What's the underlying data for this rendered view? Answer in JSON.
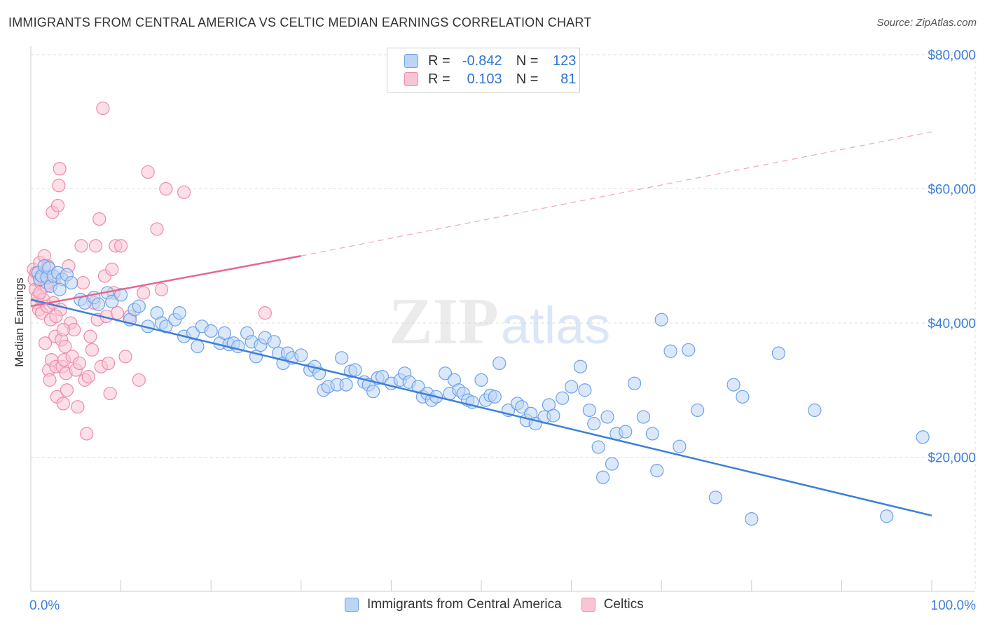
{
  "title": "IMMIGRANTS FROM CENTRAL AMERICA VS CELTIC MEDIAN EARNINGS CORRELATION CHART",
  "source": "Source: ZipAtlas.com",
  "watermark": {
    "zip": "ZIP",
    "atlas": "atlas"
  },
  "legend": {
    "r_label": "R =",
    "n_label": "N =",
    "series": [
      {
        "name": "Immigrants from Central America",
        "r": "-0.842",
        "n": "123",
        "fill": "#bcd5f5",
        "stroke": "#6ea1e8"
      },
      {
        "name": "Celtics",
        "r": "0.103",
        "n": "81",
        "fill": "#f9c4d3",
        "stroke": "#ee8aa8"
      }
    ]
  },
  "colors": {
    "blue": "#3d7fd9",
    "pink": "#e8668f",
    "axis_text": "#3d7fd9",
    "grid": "#dddddd"
  },
  "chart_data": {
    "type": "scatter",
    "title": "IMMIGRANTS FROM CENTRAL AMERICA VS CELTIC MEDIAN EARNINGS CORRELATION CHART",
    "xlabel": "",
    "ylabel": "Median Earnings",
    "xlim": [
      0,
      100
    ],
    "ylim": [
      0,
      83000
    ],
    "x_tick_labels": [
      "0.0%",
      "100.0%"
    ],
    "y_ticks": [
      20000,
      40000,
      60000,
      80000
    ],
    "y_tick_labels": [
      "$20,000",
      "$40,000",
      "$60,000",
      "$80,000"
    ],
    "grid": true,
    "series": [
      {
        "name": "Immigrants from Central America",
        "r": -0.842,
        "n": 123,
        "trend": {
          "x0": 0,
          "y0": 43500,
          "x1": 100,
          "y1": 11300,
          "style": "solid"
        },
        "points": [
          [
            0.8,
            47500
          ],
          [
            1.0,
            46500
          ],
          [
            1.2,
            47000
          ],
          [
            1.5,
            48500
          ],
          [
            1.8,
            46800
          ],
          [
            2.0,
            48200
          ],
          [
            2.2,
            45500
          ],
          [
            2.5,
            47000
          ],
          [
            3.0,
            47500
          ],
          [
            3.5,
            46500
          ],
          [
            3.2,
            45000
          ],
          [
            4.0,
            47200
          ],
          [
            4.5,
            46000
          ],
          [
            5.5,
            43500
          ],
          [
            6.0,
            43000
          ],
          [
            7.0,
            43800
          ],
          [
            7.5,
            42800
          ],
          [
            8.5,
            44500
          ],
          [
            9.0,
            43200
          ],
          [
            10.0,
            44200
          ],
          [
            11.0,
            40500
          ],
          [
            11.5,
            42000
          ],
          [
            12.0,
            42500
          ],
          [
            13.0,
            39500
          ],
          [
            14.0,
            41500
          ],
          [
            14.5,
            40000
          ],
          [
            15.0,
            39500
          ],
          [
            16.0,
            40500
          ],
          [
            16.5,
            41500
          ],
          [
            17.0,
            38000
          ],
          [
            18.0,
            38500
          ],
          [
            18.5,
            36500
          ],
          [
            19.0,
            39500
          ],
          [
            20.0,
            38800
          ],
          [
            21.0,
            37000
          ],
          [
            21.5,
            38500
          ],
          [
            22.0,
            36800
          ],
          [
            22.5,
            37000
          ],
          [
            23.0,
            36500
          ],
          [
            24.0,
            38500
          ],
          [
            24.5,
            37200
          ],
          [
            25.0,
            35000
          ],
          [
            25.5,
            36700
          ],
          [
            26.0,
            37800
          ],
          [
            27.0,
            37200
          ],
          [
            27.5,
            35500
          ],
          [
            28.0,
            34000
          ],
          [
            28.5,
            35500
          ],
          [
            29.0,
            34800
          ],
          [
            30.0,
            35200
          ],
          [
            31.0,
            33000
          ],
          [
            31.5,
            33500
          ],
          [
            32.0,
            32500
          ],
          [
            32.5,
            30000
          ],
          [
            33.0,
            30500
          ],
          [
            34.0,
            30800
          ],
          [
            34.5,
            34800
          ],
          [
            35.0,
            30800
          ],
          [
            35.5,
            32800
          ],
          [
            36.0,
            33000
          ],
          [
            37.0,
            31200
          ],
          [
            37.5,
            30800
          ],
          [
            38.0,
            29800
          ],
          [
            38.5,
            31800
          ],
          [
            39.0,
            32000
          ],
          [
            40.0,
            31000
          ],
          [
            41.0,
            31500
          ],
          [
            41.5,
            32500
          ],
          [
            42.0,
            31200
          ],
          [
            43.0,
            30500
          ],
          [
            43.5,
            29000
          ],
          [
            44.0,
            29500
          ],
          [
            44.5,
            28500
          ],
          [
            45.0,
            29000
          ],
          [
            46.0,
            32500
          ],
          [
            46.5,
            29500
          ],
          [
            47.0,
            31500
          ],
          [
            47.5,
            30000
          ],
          [
            48.0,
            29500
          ],
          [
            48.5,
            28500
          ],
          [
            49.0,
            28200
          ],
          [
            50.0,
            31500
          ],
          [
            50.5,
            28500
          ],
          [
            51.0,
            29200
          ],
          [
            51.5,
            29000
          ],
          [
            52.0,
            34000
          ],
          [
            53.0,
            27000
          ],
          [
            54.0,
            28000
          ],
          [
            54.5,
            27500
          ],
          [
            55.0,
            25500
          ],
          [
            55.5,
            26500
          ],
          [
            56.0,
            25000
          ],
          [
            57.0,
            26000
          ],
          [
            57.5,
            27800
          ],
          [
            58.0,
            26200
          ],
          [
            59.0,
            28800
          ],
          [
            60.0,
            30500
          ],
          [
            61.0,
            33500
          ],
          [
            61.5,
            30000
          ],
          [
            62.0,
            27000
          ],
          [
            62.5,
            25000
          ],
          [
            63.0,
            21500
          ],
          [
            63.5,
            17000
          ],
          [
            64.0,
            26000
          ],
          [
            64.5,
            19000
          ],
          [
            65.0,
            23500
          ],
          [
            66.0,
            23800
          ],
          [
            67.0,
            31000
          ],
          [
            68.0,
            26000
          ],
          [
            69.0,
            23500
          ],
          [
            69.5,
            18000
          ],
          [
            70.0,
            40500
          ],
          [
            71.0,
            35800
          ],
          [
            72.0,
            21600
          ],
          [
            73.0,
            36000
          ],
          [
            74.0,
            27000
          ],
          [
            76.0,
            14000
          ],
          [
            78.0,
            30800
          ],
          [
            79.0,
            29000
          ],
          [
            80.0,
            10800
          ],
          [
            83.0,
            35500
          ],
          [
            87.0,
            27000
          ],
          [
            99.0,
            23000
          ],
          [
            95.0,
            11200
          ]
        ]
      },
      {
        "name": "Celtics",
        "r": 0.103,
        "n": 81,
        "trend": {
          "x0": 0,
          "y0": 42500,
          "x1": 30,
          "y1": 50000,
          "style": "solid"
        },
        "trend_extension": {
          "x0": 30,
          "y0": 50000,
          "x1": 100,
          "y1": 68500,
          "style": "dashed"
        },
        "points": [
          [
            0.3,
            48000
          ],
          [
            0.4,
            46500
          ],
          [
            0.5,
            45000
          ],
          [
            0.6,
            47500
          ],
          [
            0.7,
            43000
          ],
          [
            0.8,
            44000
          ],
          [
            0.9,
            42000
          ],
          [
            1.0,
            49000
          ],
          [
            1.1,
            46000
          ],
          [
            1.2,
            41500
          ],
          [
            1.3,
            47000
          ],
          [
            1.4,
            43500
          ],
          [
            1.5,
            50000
          ],
          [
            1.6,
            37000
          ],
          [
            1.7,
            45500
          ],
          [
            1.8,
            42500
          ],
          [
            1.9,
            48500
          ],
          [
            2.0,
            33000
          ],
          [
            2.1,
            31500
          ],
          [
            2.2,
            40500
          ],
          [
            2.3,
            34500
          ],
          [
            2.4,
            56500
          ],
          [
            2.5,
            43000
          ],
          [
            2.6,
            46500
          ],
          [
            2.7,
            38000
          ],
          [
            2.8,
            33500
          ],
          [
            2.9,
            29000
          ],
          [
            3.0,
            57500
          ],
          [
            3.1,
            60500
          ],
          [
            3.2,
            63000
          ],
          [
            3.3,
            42000
          ],
          [
            3.4,
            37500
          ],
          [
            3.5,
            33500
          ],
          [
            3.6,
            28000
          ],
          [
            3.7,
            34500
          ],
          [
            3.8,
            36500
          ],
          [
            3.9,
            32500
          ],
          [
            4.0,
            30000
          ],
          [
            4.2,
            48500
          ],
          [
            4.4,
            40000
          ],
          [
            4.6,
            35000
          ],
          [
            4.8,
            39000
          ],
          [
            5.0,
            33000
          ],
          [
            5.2,
            27500
          ],
          [
            5.4,
            34000
          ],
          [
            5.6,
            51500
          ],
          [
            5.8,
            46000
          ],
          [
            6.0,
            31500
          ],
          [
            6.2,
            23500
          ],
          [
            6.4,
            32000
          ],
          [
            6.6,
            38000
          ],
          [
            6.8,
            36000
          ],
          [
            7.0,
            43000
          ],
          [
            7.2,
            51500
          ],
          [
            7.4,
            40500
          ],
          [
            7.6,
            55500
          ],
          [
            7.8,
            33500
          ],
          [
            8.0,
            72000
          ],
          [
            8.2,
            47000
          ],
          [
            8.4,
            41000
          ],
          [
            8.6,
            34000
          ],
          [
            8.8,
            29500
          ],
          [
            9.0,
            48000
          ],
          [
            9.2,
            44500
          ],
          [
            9.4,
            51500
          ],
          [
            9.6,
            41500
          ],
          [
            10.0,
            51500
          ],
          [
            10.5,
            35000
          ],
          [
            11.0,
            41000
          ],
          [
            12.0,
            31500
          ],
          [
            12.5,
            44500
          ],
          [
            13.0,
            62500
          ],
          [
            14.0,
            54000
          ],
          [
            14.5,
            45000
          ],
          [
            15.0,
            60000
          ],
          [
            17.0,
            59500
          ],
          [
            26.0,
            41500
          ],
          [
            1.0,
            44500
          ],
          [
            1.8,
            46000
          ],
          [
            2.8,
            41000
          ],
          [
            3.6,
            39000
          ]
        ]
      }
    ]
  }
}
